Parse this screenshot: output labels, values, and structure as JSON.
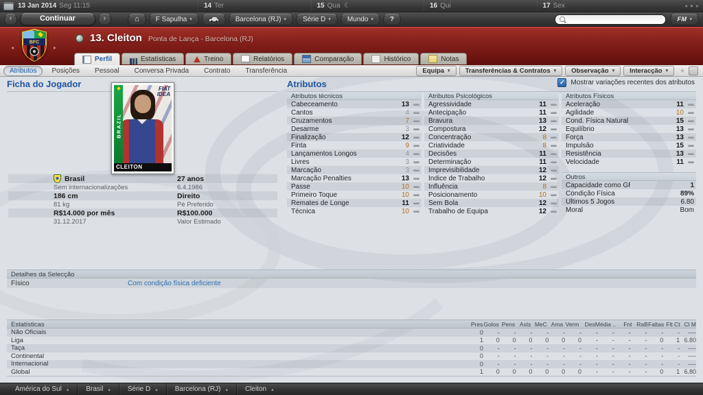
{
  "top_bar": {
    "date": "13 Jan 2014",
    "day_time": "Seg 11:15",
    "days": [
      {
        "num": "14",
        "name": "Ter"
      },
      {
        "num": "15",
        "name": "Qua",
        "weather": "moon"
      },
      {
        "num": "16",
        "name": "Qui"
      },
      {
        "num": "17",
        "name": "Sex"
      }
    ]
  },
  "toolbar": {
    "continue_label": "Continuar",
    "manager_label": "F Sapulha",
    "club_label": "Barcelona (RJ)",
    "competition_label": "Série D",
    "world_label": "Mundo",
    "help_label": "?",
    "fm_label": "FM"
  },
  "header": {
    "title": "13. Cleiton",
    "subtitle": "Ponta de Lança - Barcelona (RJ)",
    "crest_text": "BFC"
  },
  "tabs": [
    {
      "label": "Perfil",
      "icon": "profile-card-icon",
      "active": true
    },
    {
      "label": "Estatísticas",
      "icon": "bar-chart-icon"
    },
    {
      "label": "Treino",
      "icon": "cone-icon"
    },
    {
      "label": "Relatórios",
      "icon": "report-icon"
    },
    {
      "label": "Comparação",
      "icon": "compare-icon"
    },
    {
      "label": "Histórico",
      "icon": "history-icon"
    },
    {
      "label": "Notas",
      "icon": "note-icon"
    }
  ],
  "subnav": {
    "items": [
      {
        "label": "Atributos",
        "active": true
      },
      {
        "label": "Posições"
      },
      {
        "label": "Pessoal"
      },
      {
        "label": "Conversa Privada"
      },
      {
        "label": "Contrato"
      },
      {
        "label": "Transferência"
      }
    ],
    "actions": [
      "Equipa",
      "Transferências & Contratos",
      "Observação",
      "Interacção"
    ]
  },
  "profile": {
    "section_title": "Ficha do Jogador",
    "toggle_label": "Mostrar variações recentes dos atributos",
    "photo": {
      "side_label": "BRAZIL",
      "sponsor_line1": "FIAT",
      "sponsor_line2": "IDEA",
      "name_label": "CLEITON"
    },
    "info": [
      {
        "left": "Brasil",
        "left_icon": "brazil-federation-icon",
        "left_sub": "Sem internacionalizações",
        "right": "27 anos",
        "right_sub": "6.4.1986"
      },
      {
        "left": "186 cm",
        "left_sub": "81 kg",
        "right": "Direito",
        "right_sub": "Pé Preferido"
      },
      {
        "left": "R$14.000 por mês",
        "left_sub": "31.12.2017",
        "right": "R$100.000",
        "right_sub": "Valor Estimado"
      }
    ]
  },
  "attributes": {
    "section_title": "Atributos",
    "technical": {
      "title": "Atributos técnicos",
      "rows": [
        {
          "label": "Cabeceamento",
          "value": 13
        },
        {
          "label": "Cantos",
          "value": 4
        },
        {
          "label": "Cruzamentos",
          "value": 7
        },
        {
          "label": "Desarme",
          "value": 3
        },
        {
          "label": "Finalização",
          "value": 12
        },
        {
          "label": "Finta",
          "value": 9
        },
        {
          "label": "Lançamentos Longos",
          "value": 4
        },
        {
          "label": "Livres",
          "value": 3
        },
        {
          "label": "Marcação",
          "value": 3
        },
        {
          "label": "Marcação Penalties",
          "value": 13
        },
        {
          "label": "Passe",
          "value": 10
        },
        {
          "label": "Primeiro Toque",
          "value": 10
        },
        {
          "label": "Remates de Longe",
          "value": 11
        },
        {
          "label": "Técnica",
          "value": 10
        }
      ]
    },
    "psychological": {
      "title": "Atributos Psicológicos",
      "rows": [
        {
          "label": "Agressividade",
          "value": 11
        },
        {
          "label": "Antecipação",
          "value": 11
        },
        {
          "label": "Bravura",
          "value": 13
        },
        {
          "label": "Compostura",
          "value": 12
        },
        {
          "label": "Concentração",
          "value": 8
        },
        {
          "label": "Criatividade",
          "value": 8
        },
        {
          "label": "Decisões",
          "value": 11
        },
        {
          "label": "Determinação",
          "value": 11
        },
        {
          "label": "Imprevisibilidade",
          "value": 12
        },
        {
          "label": "Índice de Trabalho",
          "value": 12
        },
        {
          "label": "Influência",
          "value": 8
        },
        {
          "label": "Posicionamento",
          "value": 10
        },
        {
          "label": "Sem Bola",
          "value": 12
        },
        {
          "label": "Trabalho de Equipa",
          "value": 12
        }
      ]
    },
    "physical": {
      "title": "Atributos Físicos",
      "rows": [
        {
          "label": "Aceleração",
          "value": 11
        },
        {
          "label": "Agilidade",
          "value": 10
        },
        {
          "label": "Cond. Física Natural",
          "value": 15
        },
        {
          "label": "Equilíbrio",
          "value": 13
        },
        {
          "label": "Força",
          "value": 13
        },
        {
          "label": "Impulsão",
          "value": 15
        },
        {
          "label": "Resistência",
          "value": 13
        },
        {
          "label": "Velocidade",
          "value": 11
        }
      ]
    },
    "others": {
      "title": "Outros",
      "rows": [
        {
          "label": "Capacidade como GR",
          "value": "1",
          "emphasis": "b"
        },
        {
          "label": "Condição Física",
          "value": "89%",
          "emphasis": "b"
        },
        {
          "label": "Últimos 5 Jogos",
          "value": "6.80"
        },
        {
          "label": "Moral",
          "value": "Bom"
        }
      ]
    }
  },
  "selection": {
    "title": "Detalhes da Selecção",
    "label": "Físico",
    "value": "Com condição física deficiente"
  },
  "stats": {
    "title": "Estatísticas",
    "columns": [
      "Pres",
      "Golos",
      "Pens",
      "Asts",
      "MeC",
      "Ama",
      "Verm",
      "Des",
      "Média ..",
      "Fnt",
      "RaB",
      "Faltas",
      "Flt Ct",
      "Cl M"
    ],
    "rows": [
      {
        "name": "Não Oficiais",
        "values": [
          "0",
          "-",
          "-",
          "-",
          "-",
          "-",
          "-",
          "-",
          "-",
          "-",
          "-",
          "-",
          "-",
          "----"
        ]
      },
      {
        "name": "Liga",
        "values": [
          "1",
          "0",
          "0",
          "0",
          "0",
          "0",
          "0",
          "-",
          "-",
          "-",
          "-",
          "0",
          "1",
          "6.80"
        ]
      },
      {
        "name": "Taça",
        "values": [
          "0",
          "-",
          "-",
          "-",
          "-",
          "-",
          "-",
          "-",
          "-",
          "-",
          "-",
          "-",
          "-",
          "----"
        ]
      },
      {
        "name": "Continental",
        "values": [
          "0",
          "-",
          "-",
          "-",
          "-",
          "-",
          "-",
          "-",
          "-",
          "-",
          "-",
          "-",
          "-",
          "----"
        ]
      },
      {
        "name": "Internacional",
        "values": [
          "0",
          "-",
          "-",
          "-",
          "-",
          "-",
          "-",
          "-",
          "-",
          "-",
          "-",
          "-",
          "-",
          "----"
        ]
      },
      {
        "name": "Global",
        "values": [
          "1",
          "0",
          "0",
          "0",
          "0",
          "0",
          "0",
          "-",
          "-",
          "-",
          "-",
          "0",
          "1",
          "6.80"
        ]
      }
    ]
  },
  "bottom_bar": {
    "items": [
      "América do Sul",
      "Brasil",
      "Série D",
      "Barcelona (RJ)",
      "Cleiton"
    ]
  }
}
